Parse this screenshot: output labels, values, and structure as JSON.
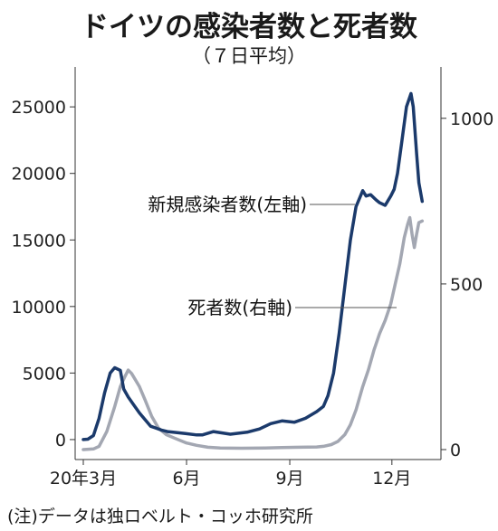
{
  "chart_data": {
    "type": "line",
    "title": "ドイツの感染者数と死者数",
    "subtitle": "（７日平均）",
    "note": "(注)データは独ロベルト・コッホ研究所",
    "x_ticks": [
      {
        "date": "2020-03-01",
        "label": "20年3月"
      },
      {
        "date": "2020-06-01",
        "label": "6月"
      },
      {
        "date": "2020-09-01",
        "label": "9月"
      },
      {
        "date": "2020-12-01",
        "label": "12月"
      }
    ],
    "x_range": [
      "2020-03-01",
      "2020-12-31"
    ],
    "y_left": {
      "ticks": [
        "25000",
        "20000",
        "15000",
        "10000",
        "5000",
        "0"
      ],
      "range": [
        -1500,
        28000
      ]
    },
    "y_right": {
      "ticks": [
        "1000",
        "500",
        "0"
      ],
      "range": [
        -30,
        1155
      ]
    },
    "series": [
      {
        "name": "新規感染者数(左軸)",
        "axis": "left",
        "color": "#1b3a6b",
        "points": [
          [
            "2020-03-01",
            0
          ],
          [
            "2020-03-05",
            30
          ],
          [
            "2020-03-10",
            300
          ],
          [
            "2020-03-15",
            1600
          ],
          [
            "2020-03-20",
            3500
          ],
          [
            "2020-03-25",
            5000
          ],
          [
            "2020-03-29",
            5400
          ],
          [
            "2020-04-03",
            5200
          ],
          [
            "2020-04-06",
            3800
          ],
          [
            "2020-04-10",
            3200
          ],
          [
            "2020-04-15",
            2600
          ],
          [
            "2020-04-20",
            2000
          ],
          [
            "2020-04-25",
            1500
          ],
          [
            "2020-04-30",
            1000
          ],
          [
            "2020-05-05",
            850
          ],
          [
            "2020-05-10",
            700
          ],
          [
            "2020-05-15",
            600
          ],
          [
            "2020-05-20",
            550
          ],
          [
            "2020-05-31",
            450
          ],
          [
            "2020-06-10",
            350
          ],
          [
            "2020-06-15",
            350
          ],
          [
            "2020-06-25",
            600
          ],
          [
            "2020-07-10",
            400
          ],
          [
            "2020-07-25",
            550
          ],
          [
            "2020-08-05",
            800
          ],
          [
            "2020-08-15",
            1200
          ],
          [
            "2020-08-25",
            1400
          ],
          [
            "2020-09-05",
            1300
          ],
          [
            "2020-09-15",
            1600
          ],
          [
            "2020-09-25",
            2100
          ],
          [
            "2020-10-01",
            2500
          ],
          [
            "2020-10-05",
            3300
          ],
          [
            "2020-10-10",
            5000
          ],
          [
            "2020-10-15",
            8000
          ],
          [
            "2020-10-20",
            11500
          ],
          [
            "2020-10-25",
            15000
          ],
          [
            "2020-10-30",
            17500
          ],
          [
            "2020-11-05",
            18700
          ],
          [
            "2020-11-08",
            18300
          ],
          [
            "2020-11-12",
            18400
          ],
          [
            "2020-11-17",
            18000
          ],
          [
            "2020-11-20",
            17800
          ],
          [
            "2020-11-25",
            17600
          ],
          [
            "2020-11-30",
            18300
          ],
          [
            "2020-12-03",
            18800
          ],
          [
            "2020-12-06",
            20000
          ],
          [
            "2020-12-10",
            22500
          ],
          [
            "2020-12-14",
            25000
          ],
          [
            "2020-12-18",
            26000
          ],
          [
            "2020-12-20",
            25000
          ],
          [
            "2020-12-23",
            21500
          ],
          [
            "2020-12-25",
            19300
          ],
          [
            "2020-12-28",
            17900
          ]
        ]
      },
      {
        "name": "死者数(右軸)",
        "axis": "right",
        "color": "#a3a7b2",
        "points": [
          [
            "2020-03-01",
            0
          ],
          [
            "2020-03-10",
            2
          ],
          [
            "2020-03-15",
            10
          ],
          [
            "2020-03-22",
            55
          ],
          [
            "2020-03-29",
            130
          ],
          [
            "2020-04-03",
            190
          ],
          [
            "2020-04-07",
            220
          ],
          [
            "2020-04-10",
            240
          ],
          [
            "2020-04-13",
            230
          ],
          [
            "2020-04-20",
            190
          ],
          [
            "2020-04-25",
            150
          ],
          [
            "2020-05-01",
            100
          ],
          [
            "2020-05-07",
            65
          ],
          [
            "2020-05-14",
            45
          ],
          [
            "2020-05-21",
            35
          ],
          [
            "2020-06-01",
            20
          ],
          [
            "2020-06-10",
            13
          ],
          [
            "2020-06-20",
            7
          ],
          [
            "2020-07-01",
            5
          ],
          [
            "2020-07-20",
            4
          ],
          [
            "2020-08-10",
            5
          ],
          [
            "2020-08-25",
            6
          ],
          [
            "2020-09-10",
            7
          ],
          [
            "2020-09-25",
            8
          ],
          [
            "2020-10-01",
            10
          ],
          [
            "2020-10-08",
            15
          ],
          [
            "2020-10-14",
            25
          ],
          [
            "2020-10-20",
            45
          ],
          [
            "2020-10-25",
            75
          ],
          [
            "2020-10-30",
            120
          ],
          [
            "2020-11-05",
            190
          ],
          [
            "2020-11-10",
            240
          ],
          [
            "2020-11-15",
            300
          ],
          [
            "2020-11-20",
            350
          ],
          [
            "2020-11-25",
            390
          ],
          [
            "2020-11-30",
            440
          ],
          [
            "2020-12-04",
            500
          ],
          [
            "2020-12-08",
            560
          ],
          [
            "2020-12-12",
            640
          ],
          [
            "2020-12-15",
            680
          ],
          [
            "2020-12-17",
            700
          ],
          [
            "2020-12-19",
            650
          ],
          [
            "2020-12-21",
            610
          ],
          [
            "2020-12-23",
            650
          ],
          [
            "2020-12-25",
            685
          ],
          [
            "2020-12-28",
            690
          ]
        ]
      }
    ]
  }
}
